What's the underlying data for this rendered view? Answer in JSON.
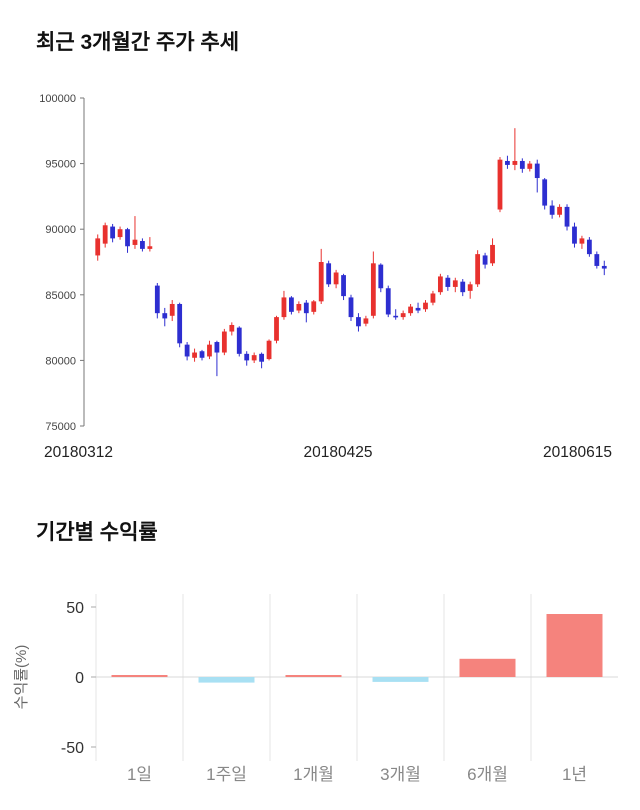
{
  "colors": {
    "candle_up": "#e8312e",
    "candle_down": "#2d2ed0",
    "bar_positive": "#f5837d",
    "bar_negative": "#a8e0f3",
    "grid": "#e4e4e4",
    "zero_line": "#d8d8d8",
    "axis": "#777777",
    "tick_text": "#444444",
    "xlabel_text": "#222222",
    "category_text": "#888888",
    "ylabel_text": "#666666"
  },
  "chart_data": [
    {
      "type": "candlestick",
      "title": "최근 3개월간 주가 추세",
      "x_tick_labels": [
        "20180312",
        "20180425",
        "20180615"
      ],
      "ylim": [
        75000,
        100000
      ],
      "y_ticks": [
        75000,
        80000,
        85000,
        90000,
        95000,
        100000
      ],
      "candles": [
        [
          88000,
          89600,
          87600,
          89300
        ],
        [
          88900,
          90500,
          88600,
          90300
        ],
        [
          90200,
          90400,
          89000,
          89300
        ],
        [
          89400,
          90200,
          89200,
          90000
        ],
        [
          90000,
          90100,
          88200,
          88700
        ],
        [
          88800,
          91000,
          88500,
          89200
        ],
        [
          89100,
          89300,
          88300,
          88500
        ],
        [
          88500,
          89400,
          88300,
          88700
        ],
        [
          85700,
          85900,
          83200,
          83600
        ],
        [
          83600,
          84000,
          82600,
          83200
        ],
        [
          83400,
          84600,
          83000,
          84300
        ],
        [
          84300,
          84400,
          81000,
          81300
        ],
        [
          81200,
          81400,
          80000,
          80300
        ],
        [
          80200,
          80900,
          79900,
          80600
        ],
        [
          80700,
          80800,
          80000,
          80200
        ],
        [
          80300,
          81500,
          80100,
          81200
        ],
        [
          81400,
          81500,
          78800,
          80600
        ],
        [
          80600,
          82400,
          80400,
          82200
        ],
        [
          82200,
          82900,
          81900,
          82700
        ],
        [
          82500,
          82600,
          80300,
          80500
        ],
        [
          80500,
          80700,
          79600,
          80000
        ],
        [
          80000,
          80600,
          79800,
          80400
        ],
        [
          80500,
          80600,
          79400,
          79900
        ],
        [
          80100,
          81600,
          80000,
          81500
        ],
        [
          81500,
          83400,
          81300,
          83300
        ],
        [
          83300,
          85300,
          83100,
          84800
        ],
        [
          84800,
          84900,
          83500,
          83700
        ],
        [
          83800,
          84500,
          83600,
          84300
        ],
        [
          84400,
          84600,
          82900,
          83600
        ],
        [
          83700,
          84600,
          83500,
          84500
        ],
        [
          84500,
          88500,
          84300,
          87500
        ],
        [
          87400,
          87600,
          85600,
          85800
        ],
        [
          85800,
          86900,
          85500,
          86700
        ],
        [
          86500,
          86600,
          84600,
          84900
        ],
        [
          84800,
          85000,
          83000,
          83300
        ],
        [
          83300,
          83600,
          82200,
          82600
        ],
        [
          82800,
          83400,
          82600,
          83200
        ],
        [
          83400,
          88300,
          83200,
          87400
        ],
        [
          87300,
          87400,
          85200,
          85500
        ],
        [
          85500,
          85700,
          83300,
          83500
        ],
        [
          83400,
          83900,
          83100,
          83300
        ],
        [
          83300,
          83800,
          83100,
          83600
        ],
        [
          83600,
          84300,
          83400,
          84100
        ],
        [
          84000,
          84400,
          83600,
          83800
        ],
        [
          83900,
          84600,
          83700,
          84400
        ],
        [
          84400,
          85300,
          84200,
          85100
        ],
        [
          85200,
          86600,
          85000,
          86400
        ],
        [
          86300,
          86500,
          85300,
          85600
        ],
        [
          85600,
          86300,
          85200,
          86100
        ],
        [
          86000,
          86200,
          84900,
          85200
        ],
        [
          85300,
          86000,
          84700,
          85800
        ],
        [
          85800,
          88400,
          85600,
          88100
        ],
        [
          88000,
          88200,
          87000,
          87300
        ],
        [
          87400,
          89300,
          87200,
          88800
        ],
        [
          91500,
          95500,
          91300,
          95300
        ],
        [
          95200,
          95600,
          94600,
          94900
        ],
        [
          94900,
          97700,
          94500,
          95200
        ],
        [
          95200,
          95400,
          94300,
          94600
        ],
        [
          94600,
          95200,
          94400,
          95000
        ],
        [
          95000,
          95300,
          92800,
          93900
        ],
        [
          93800,
          93900,
          91500,
          91800
        ],
        [
          91800,
          92200,
          90800,
          91100
        ],
        [
          91100,
          91900,
          90900,
          91700
        ],
        [
          91700,
          91900,
          89900,
          90200
        ],
        [
          90200,
          90500,
          88600,
          88900
        ],
        [
          88900,
          89500,
          88500,
          89300
        ],
        [
          89200,
          89400,
          87900,
          88100
        ],
        [
          88100,
          88300,
          87000,
          87200
        ],
        [
          87200,
          87600,
          86500,
          87000
        ]
      ]
    },
    {
      "type": "bar",
      "title": "기간별 수익률",
      "ylabel": "수익률(%)",
      "categories": [
        "1일",
        "1주일",
        "1개월",
        "3개월",
        "6개월",
        "1년"
      ],
      "values": [
        0.5,
        -4,
        0.5,
        -3.5,
        13,
        45
      ],
      "ylim": [
        -50,
        50
      ],
      "y_ticks": [
        50,
        0,
        -50
      ]
    }
  ]
}
